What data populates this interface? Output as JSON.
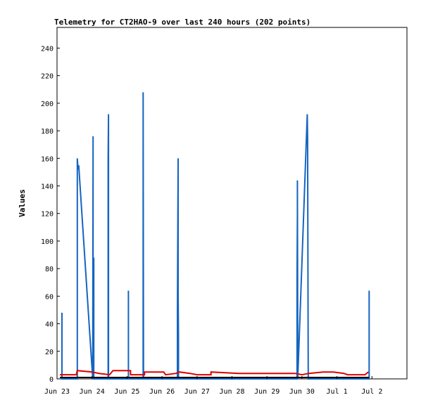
{
  "chart_data": {
    "type": "line",
    "title": "Telemetry for CT2HAO-9 over last 240 hours (202 points)",
    "xlabel": "",
    "ylabel": "Values",
    "ylim": [
      0,
      255
    ],
    "yticks": [
      0,
      20,
      40,
      60,
      80,
      100,
      120,
      140,
      160,
      180,
      200,
      220,
      240
    ],
    "xlim_days": [
      23,
      33
    ],
    "xticks": [
      {
        "day": 23,
        "label": "Jun 23"
      },
      {
        "day": 24,
        "label": "Jun 24"
      },
      {
        "day": 25,
        "label": "Jun 25"
      },
      {
        "day": 26,
        "label": "Jun 26"
      },
      {
        "day": 27,
        "label": "Jun 27"
      },
      {
        "day": 28,
        "label": "Jun 28"
      },
      {
        "day": 29,
        "label": "Jun 29"
      },
      {
        "day": 30,
        "label": "Jun 30"
      },
      {
        "day": 31,
        "label": "Jul 1"
      },
      {
        "day": 32,
        "label": "Jul 2"
      }
    ],
    "grid": false,
    "colors": {
      "blue": "#1565c0",
      "red": "#e00000",
      "black": "#000000"
    },
    "series": [
      {
        "color": "#1565c0",
        "x": [
          23.14,
          23.14,
          23.14,
          23.58,
          23.58,
          23.58,
          23.6,
          23.62,
          24.02,
          24.03,
          24.03,
          24.05,
          24.05,
          24.05,
          24.46,
          24.46,
          24.47,
          24.47,
          25.04,
          25.04,
          25.04,
          25.46,
          25.46,
          25.47,
          25.47,
          26.44,
          26.44,
          26.46,
          26.46,
          26.47,
          26.47,
          29.86,
          29.86,
          29.87,
          29.87,
          29.88,
          29.88,
          30.15,
          30.16,
          30.17,
          30.18,
          30.19,
          31.92,
          31.92,
          31.92
        ],
        "y": [
          0,
          48,
          0,
          0,
          112,
          160,
          152,
          155,
          0,
          176,
          0,
          88,
          60,
          0,
          0,
          160,
          192,
          0,
          0,
          64,
          0,
          0,
          208,
          16,
          0,
          0,
          48,
          160,
          64,
          30,
          0,
          0,
          72,
          120,
          144,
          25,
          0,
          192,
          175,
          96,
          0,
          0,
          0,
          64,
          0
        ]
      },
      {
        "color": "#e00000",
        "x": [
          23.08,
          23.55,
          23.58,
          24.0,
          24.2,
          24.5,
          24.6,
          25.1,
          25.1,
          25.5,
          25.5,
          26.05,
          26.1,
          26.4,
          26.5,
          26.8,
          27.0,
          27.4,
          27.4,
          28.2,
          28.8,
          29.6,
          29.8,
          30.0,
          30.2,
          30.6,
          30.9,
          31.2,
          31.3,
          31.8,
          31.9
        ],
        "y": [
          3,
          3,
          6,
          5,
          4,
          3,
          6,
          6,
          3,
          3,
          5,
          5,
          3,
          4,
          5,
          4,
          3,
          3,
          5,
          4,
          4,
          4,
          4,
          3,
          4,
          5,
          5,
          4,
          3,
          3,
          5
        ]
      },
      {
        "color": "#000000",
        "x": [
          23.08,
          31.92
        ],
        "y": [
          1,
          1
        ]
      }
    ]
  }
}
